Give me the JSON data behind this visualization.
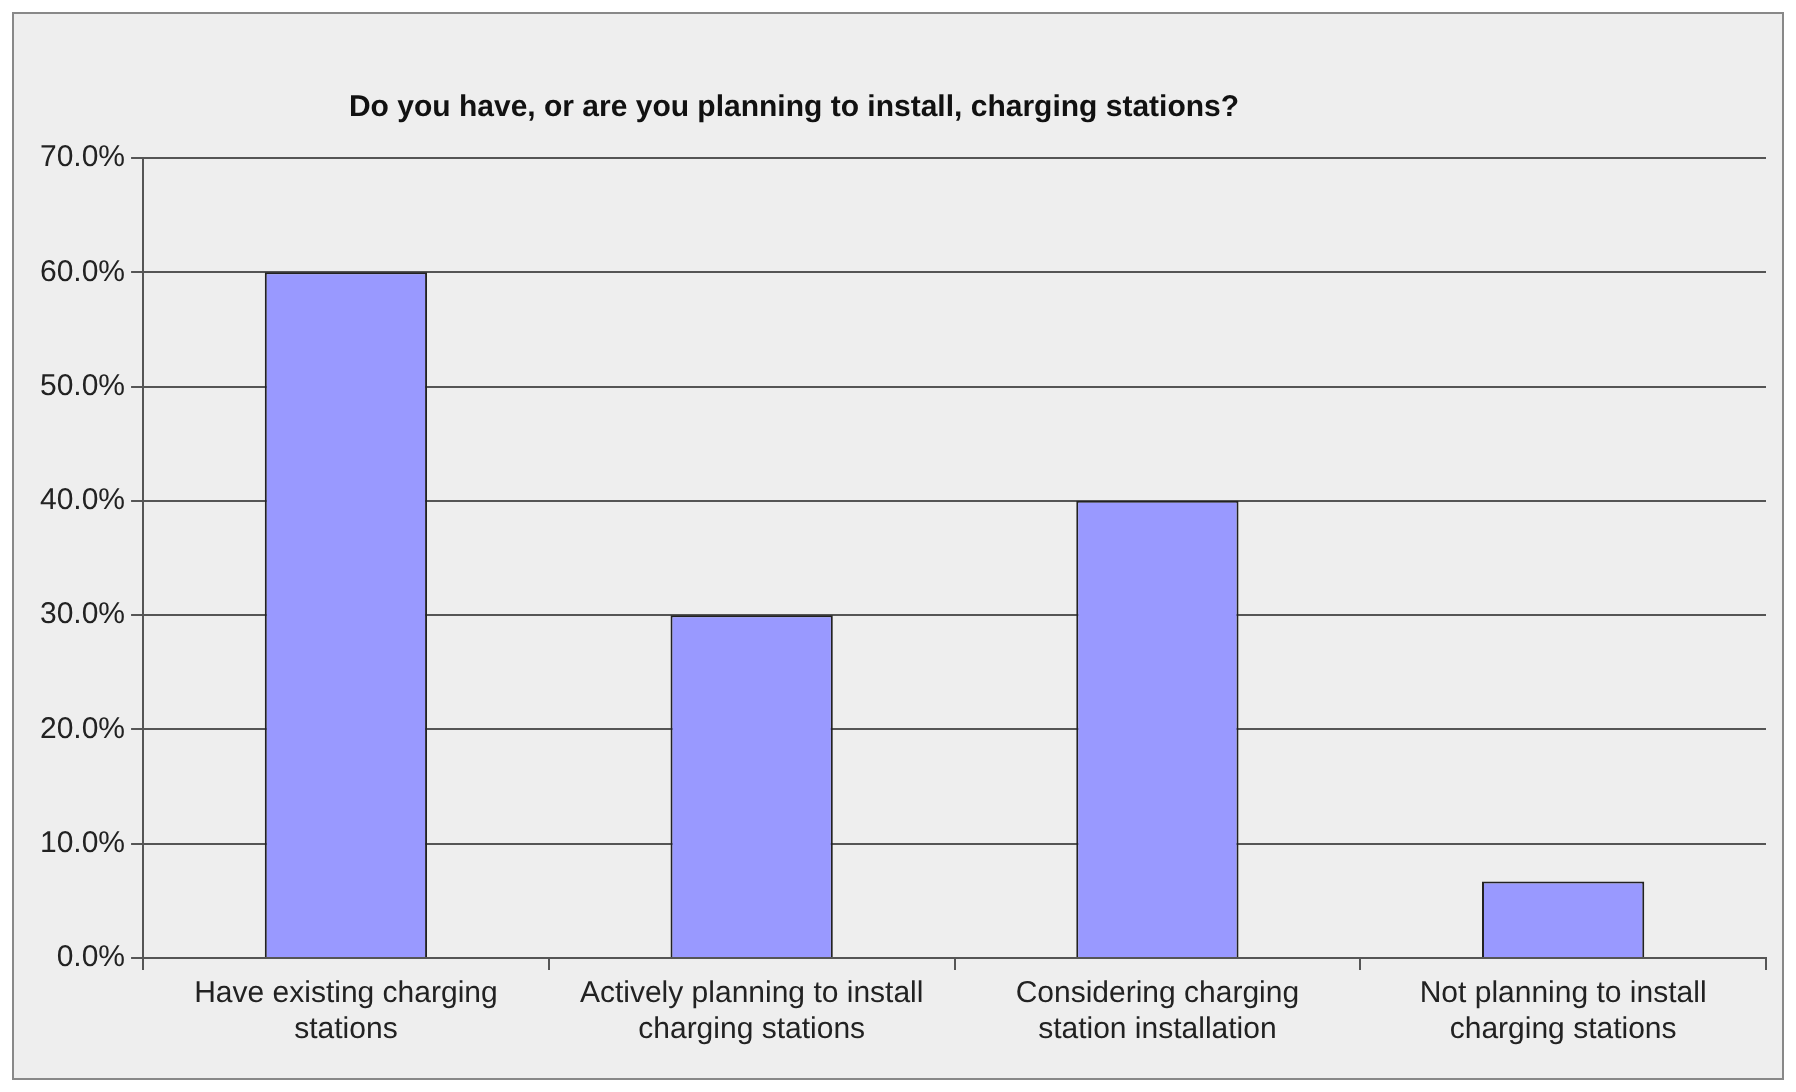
{
  "chart_data": {
    "type": "bar",
    "title": "Do you have, or are you planning to install, charging stations?",
    "categories": [
      "Have existing charging stations",
      "Actively planning to install charging stations",
      "Considering charging station installation",
      "Not planning to install charging stations"
    ],
    "values": [
      60,
      30,
      40,
      6.7
    ],
    "color": "#9999ff",
    "ylim": [
      0,
      70
    ],
    "yticks": [
      {
        "value": 0,
        "label": "0.0%"
      },
      {
        "value": 10,
        "label": "10.0%"
      },
      {
        "value": 20,
        "label": "20.0%"
      },
      {
        "value": 30,
        "label": "30.0%"
      },
      {
        "value": 40,
        "label": "40.0%"
      },
      {
        "value": 50,
        "label": "50.0%"
      },
      {
        "value": 60,
        "label": "60.0%"
      },
      {
        "value": 70,
        "label": "70.0%"
      }
    ],
    "grid": "y",
    "legend": false
  }
}
